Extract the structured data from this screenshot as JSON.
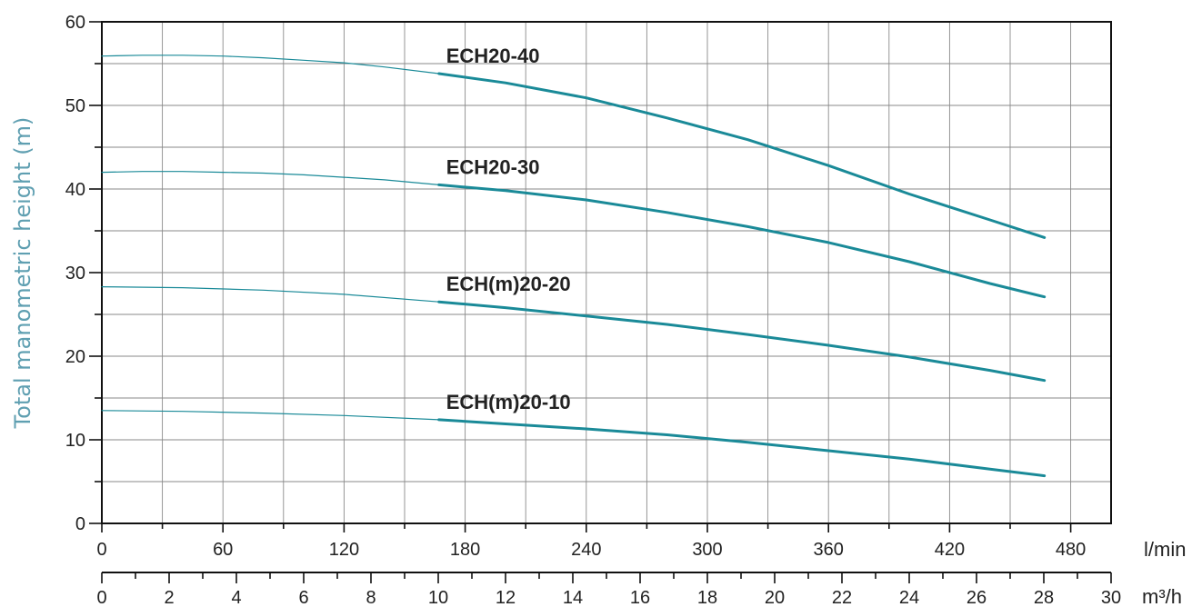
{
  "chart_data": {
    "type": "line",
    "ylabel": "Total manometric height (m)",
    "xlabel": "l/min",
    "xlabel_secondary": "m³/h",
    "ylim": [
      0,
      60
    ],
    "xlim": [
      0,
      500
    ],
    "yticks": [
      "0",
      "10",
      "20",
      "30",
      "40",
      "50",
      "60"
    ],
    "xticks": [
      "0",
      "60",
      "120",
      "180",
      "240",
      "300",
      "360",
      "420",
      "480"
    ],
    "x2ticks": [
      "0",
      "2",
      "4",
      "6",
      "8",
      "10",
      "12",
      "14",
      "16",
      "18",
      "20",
      "22",
      "24",
      "26",
      "28",
      "30"
    ],
    "grid": true,
    "line_color": "#1a8a98",
    "series": [
      {
        "name": "ECH20-40",
        "x": [
          0,
          20,
          40,
          60,
          80,
          100,
          120,
          140,
          167,
          200,
          240,
          280,
          320,
          360,
          400,
          440,
          467
        ],
        "y": [
          55.9,
          56.0,
          56.0,
          55.9,
          55.7,
          55.4,
          55.1,
          54.6,
          53.8,
          52.7,
          50.9,
          48.5,
          45.9,
          42.8,
          39.4,
          36.3,
          34.2
        ]
      },
      {
        "name": "ECH20-30",
        "x": [
          0,
          20,
          40,
          60,
          80,
          100,
          120,
          140,
          167,
          200,
          240,
          280,
          320,
          360,
          400,
          440,
          467
        ],
        "y": [
          42.0,
          42.1,
          42.1,
          42.0,
          41.9,
          41.7,
          41.4,
          41.1,
          40.5,
          39.8,
          38.7,
          37.2,
          35.5,
          33.6,
          31.3,
          28.7,
          27.1
        ]
      },
      {
        "name": "ECH(m)20-20",
        "x": [
          0,
          40,
          80,
          120,
          167,
          200,
          240,
          280,
          320,
          360,
          400,
          440,
          467
        ],
        "y": [
          28.3,
          28.2,
          27.9,
          27.4,
          26.5,
          25.8,
          24.8,
          23.8,
          22.6,
          21.3,
          19.9,
          18.3,
          17.1
        ]
      },
      {
        "name": "ECH(m)20-10",
        "x": [
          0,
          40,
          80,
          120,
          167,
          200,
          240,
          280,
          320,
          360,
          400,
          440,
          467
        ],
        "y": [
          13.5,
          13.4,
          13.2,
          12.9,
          12.4,
          11.9,
          11.3,
          10.6,
          9.7,
          8.7,
          7.7,
          6.5,
          5.7
        ]
      }
    ]
  }
}
